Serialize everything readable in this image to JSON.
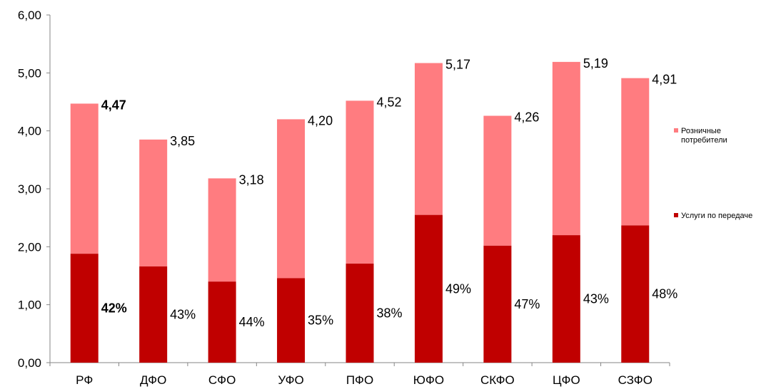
{
  "chart_data": {
    "type": "bar",
    "stacked": true,
    "categories": [
      "РФ",
      "ДФО",
      "СФО",
      "УФО",
      "ПФО",
      "ЮФО",
      "СКФО",
      "ЦФО",
      "СЗФО"
    ],
    "series": [
      {
        "name": "Услуги по передаче",
        "color": "#c00000",
        "values": [
          1.88,
          1.66,
          1.4,
          1.46,
          1.71,
          2.55,
          2.02,
          2.2,
          2.37
        ],
        "labels": [
          "42%",
          "43%",
          "44%",
          "35%",
          "38%",
          "49%",
          "47%",
          "43%",
          "48%"
        ]
      },
      {
        "name": "Розничные потребители",
        "color": "#ff7c80",
        "values": [
          2.59,
          2.19,
          1.78,
          2.74,
          2.81,
          2.62,
          2.24,
          2.99,
          2.54
        ]
      }
    ],
    "totals": [
      4.47,
      3.85,
      3.18,
      4.2,
      4.52,
      5.17,
      4.26,
      5.19,
      4.91
    ],
    "total_labels": [
      "4,47",
      "3,85",
      "3,18",
      "4,20",
      "4,52",
      "5,17",
      "4,26",
      "5,19",
      "4,91"
    ],
    "bold_category": "РФ",
    "ylim": [
      0,
      6
    ],
    "yticks": [
      "0,00",
      "1,00",
      "2,00",
      "3,00",
      "4,00",
      "5,00",
      "6,00"
    ],
    "legend": {
      "position": "right",
      "entries": [
        {
          "name": "Розничные\nпотребители",
          "color": "#ff7c80"
        },
        {
          "name": "Услуги по передаче",
          "color": "#c00000"
        }
      ]
    },
    "grid": false,
    "title": "",
    "xlabel": "",
    "ylabel": ""
  }
}
